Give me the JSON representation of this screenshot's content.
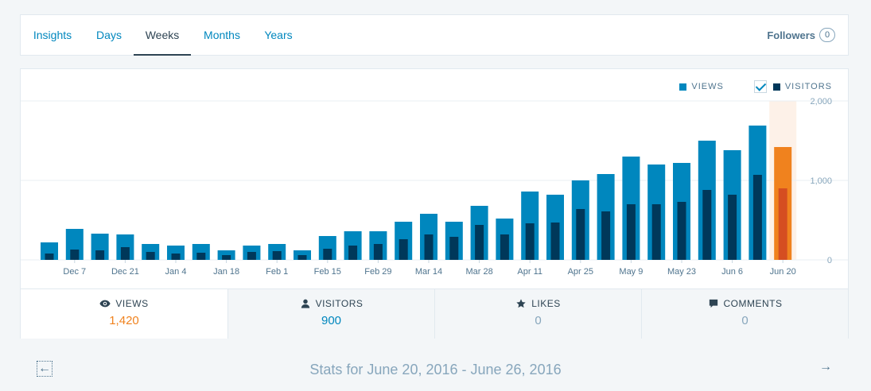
{
  "tabs": {
    "items": [
      {
        "label": "Insights"
      },
      {
        "label": "Days"
      },
      {
        "label": "Weeks"
      },
      {
        "label": "Months"
      },
      {
        "label": "Years"
      }
    ],
    "active": "Weeks",
    "followers_label": "Followers",
    "followers_count": "0"
  },
  "legend": {
    "views_label": "VIEWS",
    "visitors_label": "VISITORS",
    "visitors_checked": true
  },
  "colors": {
    "views": "#0087be",
    "visitors": "#00385a",
    "highlight_views": "#f0821e",
    "highlight_visitors": "#d54e21",
    "highlight_bg": "#fdf1e8"
  },
  "chart_data": {
    "type": "bar",
    "y_ticks": [
      "2,000",
      "1,000",
      "0"
    ],
    "ylim": [
      0,
      2000
    ],
    "x_tick_labels": [
      "Dec 7",
      "Dec 21",
      "Jan 4",
      "Jan 18",
      "Feb 1",
      "Feb 15",
      "Feb 29",
      "Mar 14",
      "Mar 28",
      "Apr 11",
      "Apr 25",
      "May 9",
      "May 23",
      "Jun 6",
      "Jun 20"
    ],
    "highlighted_index": 29,
    "series": [
      {
        "name": "VIEWS",
        "values": [
          220,
          390,
          330,
          320,
          200,
          180,
          200,
          120,
          180,
          200,
          120,
          300,
          360,
          360,
          480,
          580,
          480,
          680,
          520,
          860,
          820,
          1000,
          1080,
          1300,
          1200,
          1220,
          1500,
          1380,
          1690,
          1420
        ]
      },
      {
        "name": "VISITORS",
        "values": [
          80,
          130,
          120,
          160,
          100,
          80,
          90,
          60,
          100,
          110,
          60,
          140,
          180,
          200,
          260,
          320,
          290,
          440,
          320,
          460,
          470,
          640,
          610,
          700,
          700,
          730,
          880,
          820,
          1070,
          900
        ]
      }
    ]
  },
  "stats": [
    {
      "label": "VIEWS",
      "value": "1,420",
      "icon": "eye-icon"
    },
    {
      "label": "VISITORS",
      "value": "900",
      "icon": "person-icon"
    },
    {
      "label": "LIKES",
      "value": "0",
      "icon": "star-icon"
    },
    {
      "label": "COMMENTS",
      "value": "0",
      "icon": "comment-icon"
    }
  ],
  "period": {
    "text": "Stats for June 20, 2016 - June 26, 2016"
  }
}
